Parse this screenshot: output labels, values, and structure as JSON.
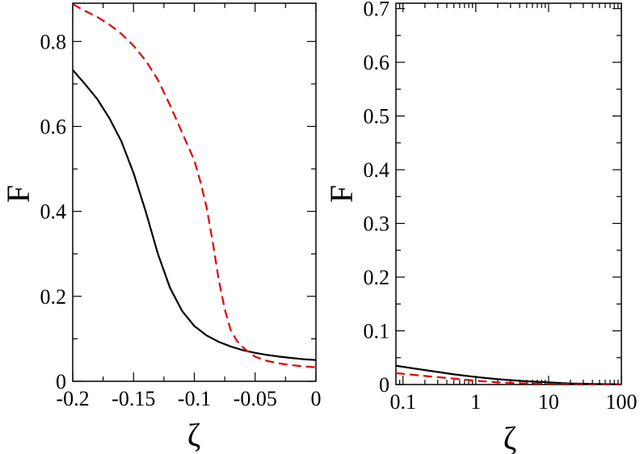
{
  "chart_data": [
    {
      "type": "line",
      "xlabel": "ζ",
      "ylabel": "F",
      "xlim": [
        -0.2,
        0
      ],
      "ylim": [
        0,
        0.89
      ],
      "x_ticks": [
        -0.2,
        -0.15,
        -0.1,
        -0.05,
        0
      ],
      "x_tick_labels": [
        "-0.2",
        "-0.15",
        "-0.1",
        "-0.05",
        "0"
      ],
      "y_ticks": [
        0,
        0.2,
        0.4,
        0.6,
        0.8
      ],
      "y_tick_labels": [
        "0",
        "0.2",
        "0.4",
        "0.6",
        "0.8"
      ],
      "grid": false,
      "series": [
        {
          "color": "#000000",
          "dash": "solid",
          "x": [
            -0.2,
            -0.19,
            -0.18,
            -0.17,
            -0.16,
            -0.15,
            -0.14,
            -0.13,
            -0.12,
            -0.11,
            -0.1,
            -0.09,
            -0.08,
            -0.07,
            -0.06,
            -0.05,
            -0.04,
            -0.03,
            -0.02,
            -0.01,
            0
          ],
          "y": [
            0.733,
            0.7,
            0.665,
            0.62,
            0.565,
            0.49,
            0.4,
            0.3,
            0.22,
            0.165,
            0.13,
            0.108,
            0.093,
            0.082,
            0.073,
            0.067,
            0.062,
            0.058,
            0.055,
            0.052,
            0.05
          ]
        },
        {
          "color": "#e00000",
          "dash": "dashed",
          "x": [
            -0.2,
            -0.19,
            -0.18,
            -0.17,
            -0.16,
            -0.15,
            -0.14,
            -0.13,
            -0.12,
            -0.11,
            -0.1,
            -0.095,
            -0.09,
            -0.085,
            -0.08,
            -0.075,
            -0.07,
            -0.065,
            -0.06,
            -0.055,
            -0.05,
            -0.04,
            -0.03,
            -0.02,
            -0.01,
            0
          ],
          "y": [
            0.888,
            0.872,
            0.858,
            0.84,
            0.818,
            0.79,
            0.755,
            0.71,
            0.65,
            0.585,
            0.52,
            0.47,
            0.41,
            0.33,
            0.24,
            0.17,
            0.12,
            0.095,
            0.08,
            0.068,
            0.058,
            0.048,
            0.042,
            0.038,
            0.035,
            0.033
          ]
        }
      ]
    },
    {
      "type": "line",
      "xlabel": "ζ",
      "ylabel": "F",
      "xscale": "log",
      "xlim": [
        0.08,
        100
      ],
      "ylim": [
        0,
        0.71
      ],
      "x_ticks": [
        0.1,
        1,
        10,
        100
      ],
      "x_tick_labels": [
        "0.1",
        "1",
        "10",
        "100"
      ],
      "y_ticks": [
        0,
        0.1,
        0.2,
        0.3,
        0.4,
        0.5,
        0.6,
        0.7
      ],
      "y_tick_labels": [
        "0",
        "0.1",
        "0.2",
        "0.3",
        "0.4",
        "0.5",
        "0.6",
        "0.7"
      ],
      "grid": false,
      "series": [
        {
          "color": "#000000",
          "dash": "solid",
          "x": [
            0.08,
            0.1,
            0.2,
            0.5,
            1,
            2,
            5,
            10,
            20,
            50,
            100
          ],
          "y": [
            0.035,
            0.033,
            0.027,
            0.019,
            0.014,
            0.01,
            0.006,
            0.004,
            0.002,
            0.001,
            0.0005
          ]
        },
        {
          "color": "#e00000",
          "dash": "dashed",
          "x": [
            0.08,
            0.1,
            0.2,
            0.5,
            1,
            2,
            5,
            10,
            20,
            50,
            100
          ],
          "y": [
            0.021,
            0.02,
            0.016,
            0.011,
            0.007,
            0.004,
            0.002,
            0.001,
            0.0005,
            0.0002,
            0.0001
          ]
        }
      ]
    }
  ]
}
